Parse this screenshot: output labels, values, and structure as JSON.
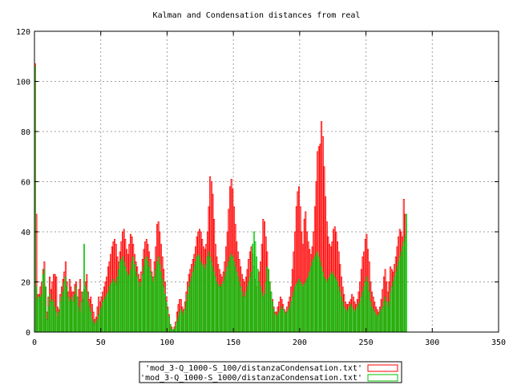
{
  "chart_data": {
    "type": "bar",
    "title": "Kalman and Condensation distances from real",
    "xlabel": "",
    "ylabel": "",
    "xlim": [
      0,
      350
    ],
    "ylim": [
      0,
      120
    ],
    "x_ticks": [
      0,
      50,
      100,
      150,
      200,
      250,
      300,
      350
    ],
    "y_ticks": [
      0,
      20,
      40,
      60,
      80,
      100,
      120
    ],
    "grid": true,
    "legend_position": "bottom-center",
    "x_step": 1,
    "series": [
      {
        "name": "'mod_3-Q_1000-S_100/distanzaCondensation.txt'",
        "color": "#ff0000",
        "values": [
          107,
          47,
          15,
          15,
          18,
          20,
          25,
          28,
          18,
          8,
          14,
          22,
          17,
          20,
          23,
          23,
          22,
          10,
          9,
          15,
          18,
          21,
          24,
          28,
          20,
          16,
          21,
          18,
          16,
          16,
          19,
          20,
          14,
          17,
          21,
          16,
          13,
          17,
          20,
          23,
          16,
          13,
          14,
          11,
          8,
          5,
          6,
          10,
          14,
          12,
          14,
          16,
          18,
          20,
          22,
          26,
          28,
          31,
          34,
          36,
          37,
          35,
          30,
          28,
          32,
          36,
          40,
          41,
          37,
          33,
          31,
          35,
          39,
          38,
          35,
          31,
          28,
          26,
          23,
          21,
          24,
          29,
          33,
          36,
          37,
          35,
          32,
          29,
          24,
          22,
          28,
          34,
          43,
          44,
          40,
          35,
          30,
          25,
          20,
          14,
          10,
          7,
          3,
          2,
          1,
          2,
          4,
          8,
          11,
          13,
          13,
          10,
          9,
          12,
          16,
          20,
          23,
          25,
          27,
          29,
          31,
          34,
          38,
          40,
          41,
          40,
          37,
          34,
          33,
          35,
          40,
          50,
          62,
          60,
          55,
          45,
          35,
          30,
          27,
          25,
          23,
          22,
          24,
          28,
          34,
          40,
          49,
          58,
          61,
          57,
          50,
          43,
          36,
          32,
          29,
          26,
          23,
          21,
          20,
          22,
          25,
          29,
          32,
          34,
          31,
          26,
          21,
          18,
          20,
          24,
          28,
          35,
          45,
          44,
          38,
          32,
          25,
          20,
          16,
          13,
          10,
          8,
          8,
          10,
          12,
          14,
          13,
          11,
          9,
          8,
          10,
          12,
          14,
          18,
          25,
          32,
          40,
          50,
          56,
          58,
          50,
          40,
          35,
          45,
          48,
          40,
          36,
          33,
          31,
          34,
          40,
          50,
          60,
          72,
          74,
          75,
          84,
          78,
          66,
          54,
          44,
          38,
          35,
          34,
          36,
          41,
          42,
          40,
          36,
          32,
          27,
          22,
          18,
          15,
          12,
          11,
          11,
          12,
          13,
          15,
          14,
          12,
          11,
          13,
          16,
          20,
          25,
          30,
          32,
          37,
          39,
          33,
          28,
          20,
          16,
          14,
          12,
          10,
          9,
          8,
          10,
          13,
          17,
          22,
          25,
          20,
          16,
          20,
          26,
          25,
          24,
          27,
          30,
          34,
          38,
          41,
          40,
          38,
          53,
          47
        ]
      },
      {
        "name": "'mod_3-Q_1000-S_1000/distanzaCondensation.txt'",
        "color": "#00c000",
        "values": [
          106,
          18,
          13,
          14,
          14,
          15,
          23,
          25,
          18,
          5,
          10,
          15,
          12,
          13,
          12,
          10,
          8,
          6,
          8,
          12,
          14,
          16,
          20,
          22,
          18,
          14,
          12,
          13,
          14,
          12,
          15,
          18,
          14,
          10,
          8,
          12,
          16,
          35,
          18,
          16,
          12,
          10,
          8,
          5,
          4,
          3,
          4,
          5,
          7,
          9,
          10,
          12,
          13,
          14,
          15,
          16,
          18,
          19,
          20,
          21,
          20,
          19,
          22,
          25,
          28,
          29,
          30,
          28,
          26,
          24,
          22,
          23,
          25,
          28,
          30,
          27,
          24,
          22,
          20,
          18,
          20,
          23,
          26,
          29,
          30,
          28,
          26,
          24,
          22,
          20,
          22,
          25,
          28,
          30,
          27,
          24,
          21,
          18,
          15,
          12,
          9,
          6,
          3,
          1,
          1,
          1,
          2,
          4,
          6,
          8,
          9,
          8,
          7,
          9,
          12,
          15,
          18,
          20,
          22,
          24,
          26,
          28,
          30,
          31,
          30,
          28,
          27,
          26,
          25,
          27,
          30,
          32,
          30,
          28,
          26,
          24,
          22,
          20,
          19,
          18,
          18,
          19,
          20,
          22,
          24,
          26,
          28,
          30,
          31,
          30,
          28,
          26,
          24,
          22,
          20,
          18,
          16,
          14,
          14,
          16,
          18,
          20,
          22,
          24,
          35,
          40,
          36,
          30,
          25,
          20,
          18,
          16,
          14,
          15,
          20,
          26,
          25,
          20,
          16,
          12,
          9,
          7,
          6,
          7,
          8,
          9,
          10,
          9,
          8,
          7,
          8,
          9,
          10,
          12,
          14,
          16,
          18,
          19,
          20,
          21,
          20,
          19,
          18,
          19,
          20,
          21,
          22,
          24,
          26,
          28,
          29,
          30,
          31,
          32,
          30,
          28,
          26,
          24,
          22,
          21,
          20,
          21,
          22,
          23,
          24,
          23,
          22,
          21,
          20,
          18,
          16,
          14,
          12,
          10,
          9,
          8,
          9,
          10,
          11,
          10,
          9,
          8,
          9,
          10,
          11,
          12,
          14,
          16,
          18,
          20,
          22,
          20,
          16,
          12,
          10,
          9,
          8,
          7,
          6,
          7,
          8,
          9,
          10,
          12,
          14,
          12,
          10,
          12,
          16,
          18,
          20,
          22,
          24,
          26,
          28,
          30,
          32,
          34,
          36,
          38,
          47
        ]
      }
    ]
  }
}
